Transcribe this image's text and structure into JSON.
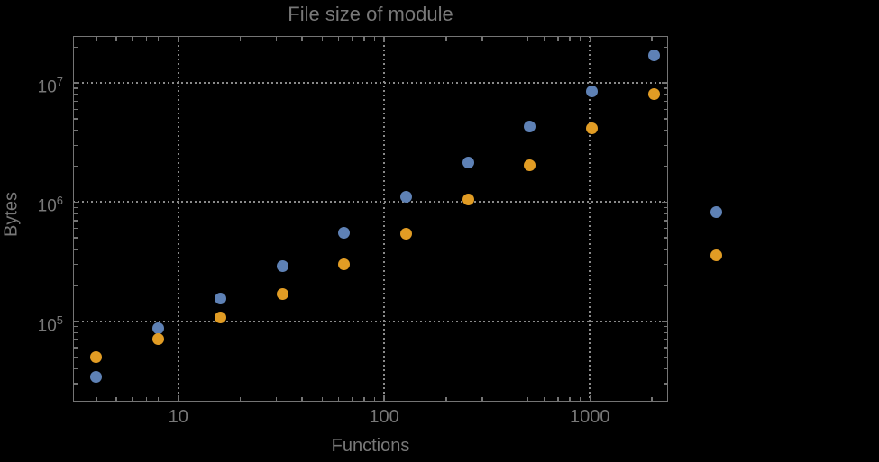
{
  "chart_data": {
    "type": "scatter",
    "title": "File size of module",
    "xlabel": "Functions",
    "ylabel": "Bytes",
    "xscale": "log",
    "yscale": "log",
    "xlim": [
      3.1,
      2375
    ],
    "ylim": [
      21000,
      25000000
    ],
    "grid": "major-dotted",
    "legend": "none",
    "x": [
      4,
      8,
      16,
      32,
      64,
      128,
      256,
      512,
      1024,
      2048,
      4096
    ],
    "series": [
      {
        "name": "blue",
        "color": "#5E81B5",
        "values": [
          34000,
          87000,
          155000,
          290000,
          550000,
          1100000,
          2150000,
          4300000,
          8500000,
          17000000,
          830000
        ]
      },
      {
        "name": "orange",
        "color": "#E19C24",
        "values": [
          50000,
          71000,
          107000,
          170000,
          300000,
          540000,
          1050000,
          2050000,
          4150000,
          8100000,
          360000
        ]
      }
    ],
    "xticks": {
      "major_values": [
        10,
        100,
        1000
      ],
      "major_labels": [
        "10",
        "100",
        "1000"
      ],
      "minor_values": [
        4,
        5,
        6,
        7,
        8,
        9,
        20,
        30,
        40,
        50,
        60,
        70,
        80,
        90,
        200,
        300,
        400,
        500,
        600,
        700,
        800,
        900,
        2000
      ]
    },
    "yticks": {
      "major_values": [
        100000,
        1000000,
        10000000
      ],
      "major_label_base": "10",
      "major_label_exponents": [
        "5",
        "6",
        "7"
      ],
      "minor_values": [
        30000,
        40000,
        50000,
        60000,
        70000,
        80000,
        90000,
        200000,
        300000,
        400000,
        500000,
        600000,
        700000,
        800000,
        900000,
        2000000,
        3000000,
        4000000,
        5000000,
        6000000,
        7000000,
        8000000,
        9000000,
        20000000
      ]
    }
  },
  "colors": {
    "background": "#000000",
    "text": "#787878",
    "frame": "#747474",
    "grid": "#8a8a8a"
  }
}
